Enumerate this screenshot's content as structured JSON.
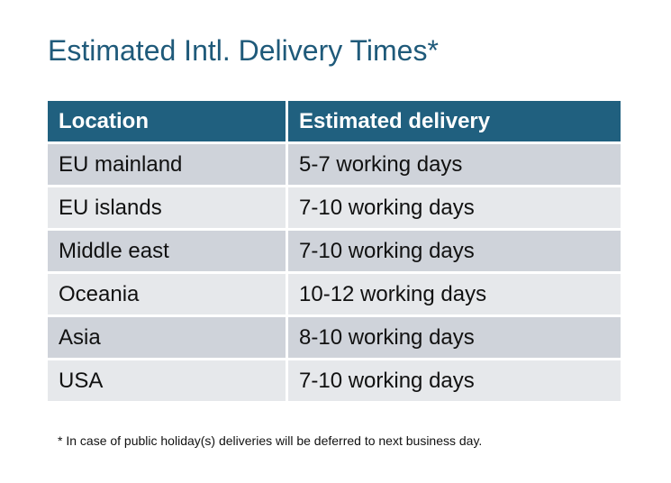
{
  "title": "Estimated Intl. Delivery Times*",
  "table": {
    "headers": [
      "Location",
      "Estimated delivery"
    ],
    "rows": [
      [
        "EU mainland",
        "5-7 working days"
      ],
      [
        "EU islands",
        "7-10 working days"
      ],
      [
        "Middle east",
        "7-10 working days"
      ],
      [
        "Oceania",
        "10-12 working days"
      ],
      [
        "Asia",
        "8-10 working days"
      ],
      [
        "USA",
        "7-10 working days"
      ]
    ]
  },
  "footnote": "* In case of public holiday(s) deliveries will be deferred to next business day.",
  "colors": {
    "header": "#20607f",
    "title": "#1f5a7a",
    "row_dark": "#cfd3da",
    "row_light": "#e6e8eb"
  }
}
